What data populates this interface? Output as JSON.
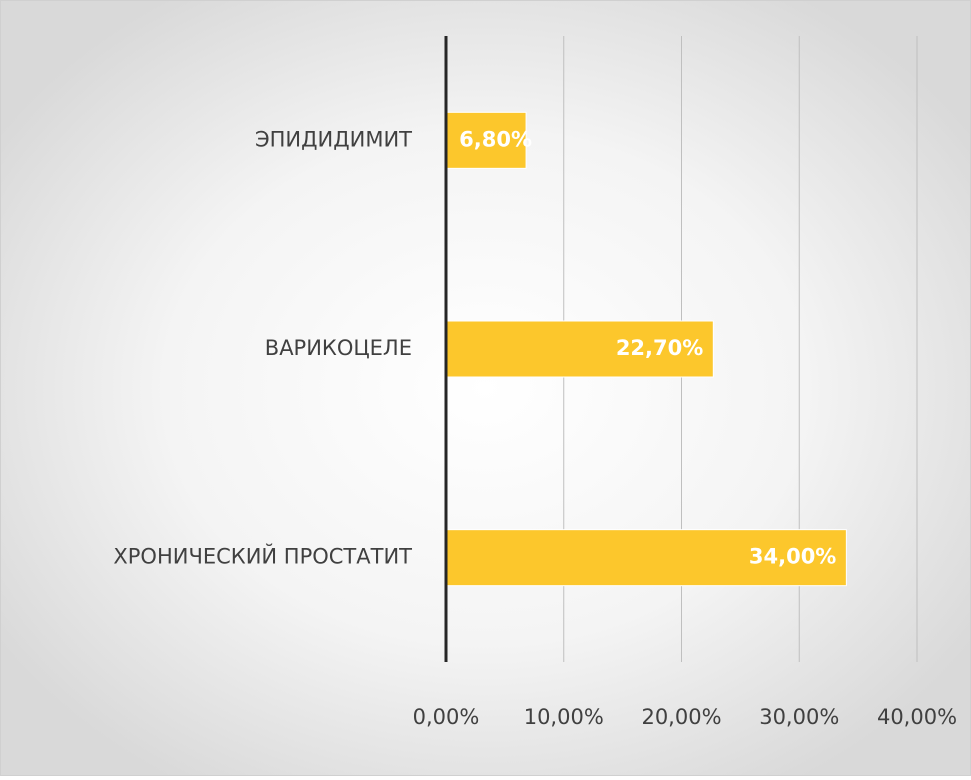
{
  "chart_data": {
    "type": "hbar",
    "categories": [
      "ЭПИДИДИМИТ",
      "ВАРИКОЦЕЛЕ",
      "ХРОНИЧЕСКИЙ ПРОСТАТИТ"
    ],
    "values": [
      6.8,
      22.7,
      34
    ],
    "value_labels": [
      "6,80%",
      "22,70%",
      "34,00%"
    ],
    "color": "#fcc72c",
    "xlim": [
      0,
      40
    ],
    "xticks": [
      {
        "value": 0,
        "label": "0,00%"
      },
      {
        "value": 10,
        "label": "10,00%"
      },
      {
        "value": 20,
        "label": "20,00%"
      },
      {
        "value": 30,
        "label": "30,00%"
      },
      {
        "value": 40,
        "label": "40,00%"
      }
    ],
    "grid": true
  }
}
